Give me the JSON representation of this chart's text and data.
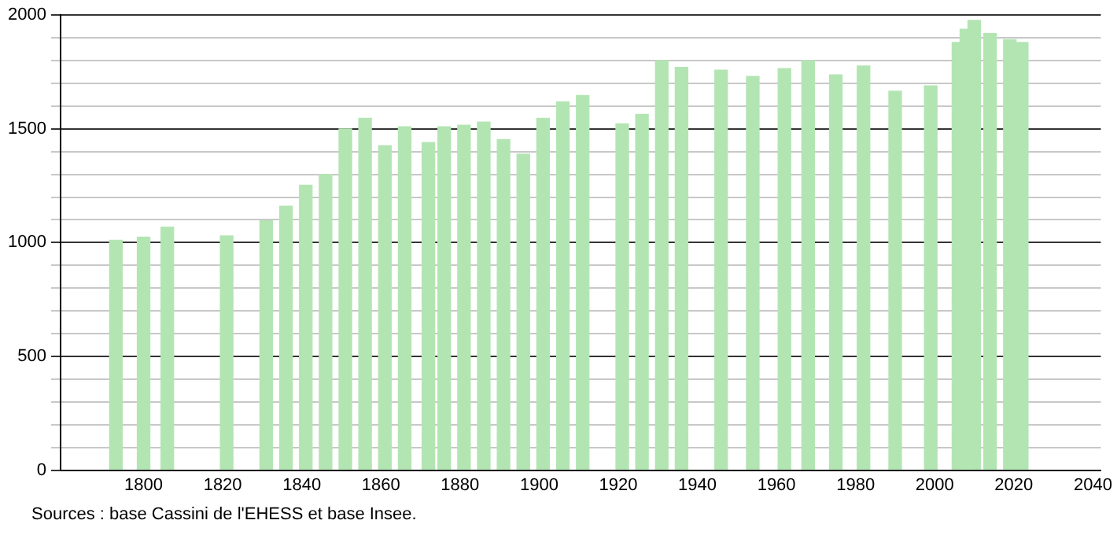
{
  "chart_data": {
    "type": "bar",
    "x": [
      1793,
      1800,
      1806,
      1821,
      1831,
      1836,
      1841,
      1846,
      1851,
      1856,
      1861,
      1866,
      1872,
      1876,
      1881,
      1886,
      1891,
      1896,
      1901,
      1906,
      1911,
      1921,
      1926,
      1931,
      1936,
      1946,
      1954,
      1962,
      1968,
      1975,
      1982,
      1990,
      1999,
      2006,
      2008,
      2010,
      2014,
      2019,
      2022
    ],
    "values": [
      1010,
      1024,
      1068,
      1029,
      1096,
      1160,
      1252,
      1300,
      1500,
      1546,
      1426,
      1509,
      1440,
      1509,
      1516,
      1530,
      1453,
      1389,
      1546,
      1619,
      1647,
      1522,
      1564,
      1800,
      1770,
      1758,
      1730,
      1765,
      1800,
      1737,
      1776,
      1666,
      1689,
      1880,
      1938,
      1977,
      1919,
      1892,
      1880
    ],
    "color": "#b3e5b3",
    "xlim": [
      1779,
      2042
    ],
    "xticks": [
      1800,
      1820,
      1840,
      1860,
      1880,
      1900,
      1920,
      1940,
      1960,
      1980,
      2000,
      2020,
      2040
    ],
    "ylim": [
      0,
      2000
    ],
    "yticks": [
      0,
      {
        "value": 100,
        "label": null
      },
      {
        "value": 200,
        "label": null
      },
      {
        "value": 300,
        "label": null
      },
      {
        "value": 400,
        "label": null
      },
      500,
      {
        "value": 600,
        "label": null
      },
      {
        "value": 700,
        "label": null
      },
      {
        "value": 800,
        "label": null
      },
      {
        "value": 900,
        "label": null
      },
      1000,
      {
        "value": 1100,
        "label": null
      },
      {
        "value": 1200,
        "label": null
      },
      {
        "value": 1300,
        "label": null
      },
      {
        "value": 1400,
        "label": null
      },
      1500,
      {
        "value": 1600,
        "label": null
      },
      {
        "value": 1700,
        "label": null
      },
      {
        "value": 1800,
        "label": null
      },
      {
        "value": 1900,
        "label": null
      },
      2000
    ],
    "grid": "y",
    "annotations": [
      "Sources : base Cassini de l'EHESS et base Insee."
    ]
  }
}
